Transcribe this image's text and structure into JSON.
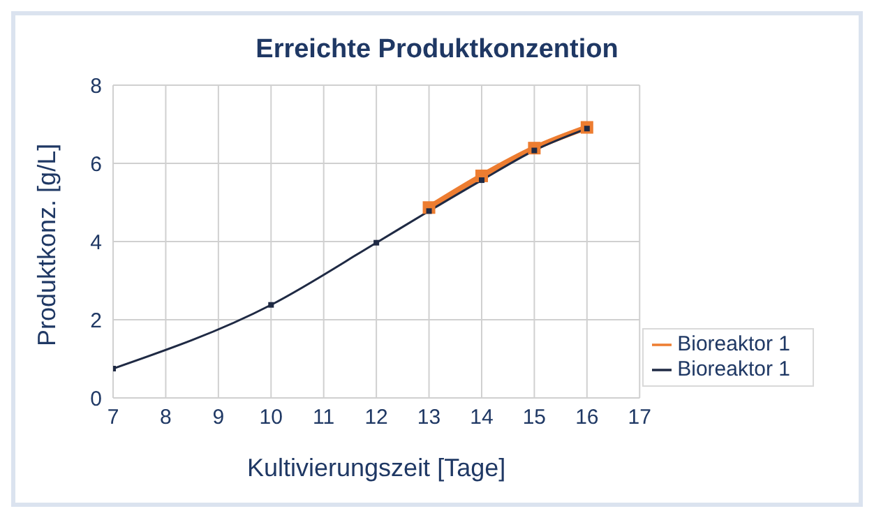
{
  "chart_data": {
    "type": "line",
    "title": "Erreichte Produktkonzention",
    "xlabel": "Kultivierungszeit [Tage]",
    "ylabel": "Produktkonz. [g/L]",
    "xlim": [
      7,
      17
    ],
    "xticks": [
      7,
      8,
      9,
      10,
      11,
      12,
      13,
      14,
      15,
      16,
      17
    ],
    "ylim": [
      0,
      8
    ],
    "yticks": [
      0,
      2,
      4,
      6,
      8
    ],
    "series": [
      {
        "name": "Bioreaktor 1",
        "color": "#ed7d31",
        "x": [
          13,
          14,
          15,
          16
        ],
        "values": [
          4.87,
          5.68,
          6.39,
          6.92
        ]
      },
      {
        "name": "Bioreaktor 1",
        "color": "#1f2a44",
        "x": [
          7,
          10,
          12,
          13,
          14,
          15,
          16
        ],
        "values": [
          0.75,
          2.38,
          3.97,
          4.78,
          5.57,
          6.33,
          6.89
        ]
      }
    ],
    "grid": true,
    "legend": "bottom right",
    "marker": "square",
    "line_style": "solid"
  }
}
